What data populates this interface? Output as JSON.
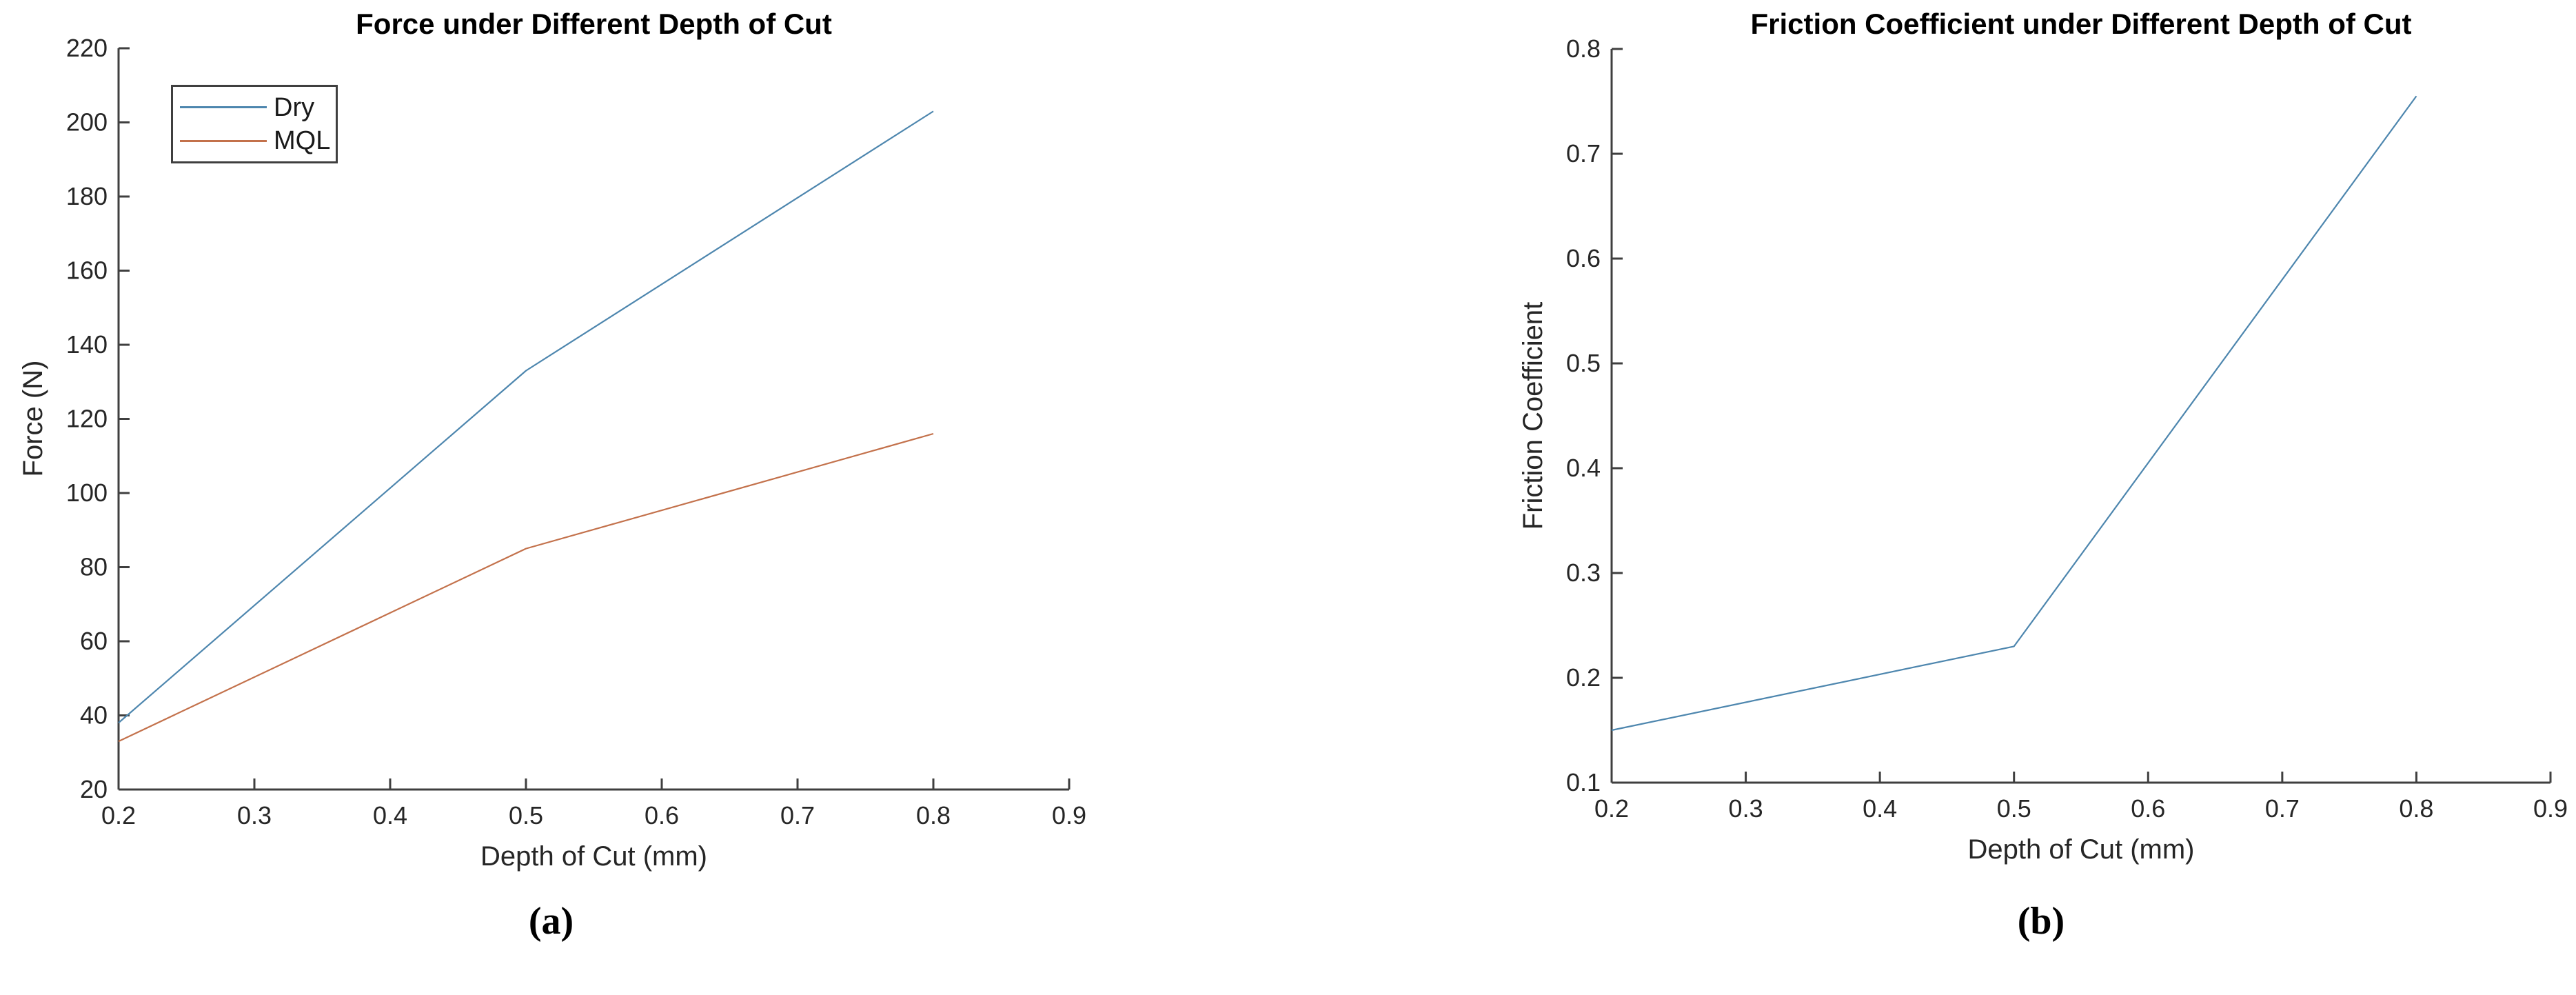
{
  "page": {
    "background": "#ffffff"
  },
  "colors": {
    "axis": "#3f3f3f",
    "tick_text": "#262626",
    "title_text": "#000000",
    "dry_line": "#4d86ae",
    "mql_line": "#c3714b",
    "friction_line": "#4d86ae",
    "legend_border": "#3f3f3f"
  },
  "chart_data": [
    {
      "type": "line",
      "title": "Force under Different Depth of Cut",
      "xlabel": "Depth of Cut (mm)",
      "ylabel": "Force (N)",
      "caption": "(a)",
      "xlim": [
        0.2,
        0.9
      ],
      "ylim": [
        20,
        220
      ],
      "xticks": [
        "0.2",
        "0.3",
        "0.4",
        "0.5",
        "0.6",
        "0.7",
        "0.8",
        "0.9"
      ],
      "yticks": [
        "20",
        "40",
        "60",
        "80",
        "100",
        "120",
        "140",
        "160",
        "180",
        "200",
        "220"
      ],
      "grid": false,
      "x": [
        0.2,
        0.5,
        0.8
      ],
      "series": [
        {
          "name": "Dry",
          "values": [
            38,
            133,
            203
          ],
          "color": "#4d86ae"
        },
        {
          "name": "MQL",
          "values": [
            33,
            85,
            116
          ],
          "color": "#c3714b"
        }
      ],
      "legend": {
        "visible": true,
        "position": "top-left",
        "items": [
          "Dry",
          "MQL"
        ]
      }
    },
    {
      "type": "line",
      "title": "Friction Coefficient under Different Depth of Cut",
      "xlabel": "Depth of Cut (mm)",
      "ylabel": "Friction Coefficient",
      "caption": "(b)",
      "xlim": [
        0.2,
        0.9
      ],
      "ylim": [
        0.1,
        0.8
      ],
      "xticks": [
        "0.2",
        "0.3",
        "0.4",
        "0.5",
        "0.6",
        "0.7",
        "0.8",
        "0.9"
      ],
      "yticks": [
        "0.1",
        "0.2",
        "0.3",
        "0.4",
        "0.5",
        "0.6",
        "0.7",
        "0.8"
      ],
      "grid": false,
      "x": [
        0.2,
        0.5,
        0.8
      ],
      "series": [
        {
          "name": "Friction Coefficient",
          "values": [
            0.15,
            0.23,
            0.755
          ],
          "color": "#4d86ae"
        }
      ],
      "legend": {
        "visible": false,
        "position": null,
        "items": []
      }
    }
  ]
}
